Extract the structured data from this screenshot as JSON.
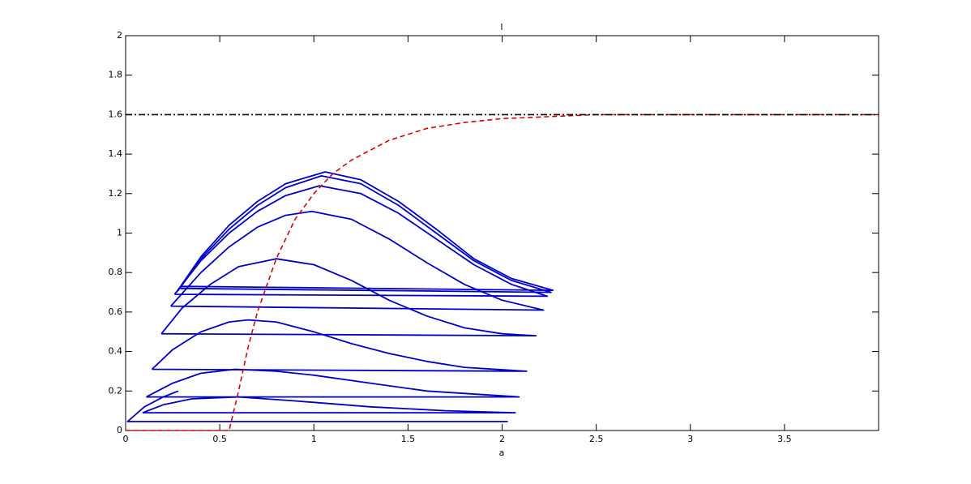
{
  "chart_data": {
    "type": "line",
    "title": "l",
    "x_label": "a",
    "xlim": [
      0,
      4
    ],
    "ylim": [
      0,
      2
    ],
    "xticks": [
      0,
      0.5,
      1,
      1.5,
      2,
      2.5,
      3,
      3.5
    ],
    "yticks": [
      0,
      0.2,
      0.4,
      0.6,
      0.8,
      1,
      1.2,
      1.4,
      1.6,
      1.8,
      2
    ],
    "series": [
      {
        "color": "#0000cc",
        "style": "solid",
        "x": [
          0.27,
          0.4,
          0.55,
          0.7,
          0.85,
          1.06,
          1.25,
          1.45,
          1.65,
          1.85,
          2.05,
          2.27,
          0.29
        ],
        "values": [
          0.7,
          0.88,
          1.04,
          1.16,
          1.25,
          1.31,
          1.27,
          1.16,
          1.02,
          0.87,
          0.77,
          0.71,
          0.73
        ]
      },
      {
        "color": "#0000cc",
        "style": "solid",
        "x": [
          0.28,
          0.4,
          0.55,
          0.7,
          0.85,
          1.04,
          1.25,
          1.45,
          1.65,
          1.85,
          2.05,
          2.26,
          0.28
        ],
        "values": [
          0.71,
          0.87,
          1.02,
          1.14,
          1.23,
          1.29,
          1.25,
          1.14,
          1.0,
          0.86,
          0.76,
          0.7,
          0.72
        ]
      },
      {
        "color": "#0000cc",
        "style": "solid",
        "x": [
          0.26,
          0.4,
          0.55,
          0.7,
          0.85,
          1.03,
          1.25,
          1.45,
          1.65,
          1.85,
          2.05,
          2.24,
          0.26
        ],
        "values": [
          0.69,
          0.86,
          1.0,
          1.11,
          1.19,
          1.24,
          1.2,
          1.1,
          0.97,
          0.84,
          0.74,
          0.68,
          0.69
        ]
      },
      {
        "color": "#0000cc",
        "style": "solid",
        "x": [
          0.24,
          0.4,
          0.55,
          0.7,
          0.85,
          0.99,
          1.2,
          1.4,
          1.6,
          1.8,
          2.0,
          2.22,
          0.24
        ],
        "values": [
          0.63,
          0.8,
          0.93,
          1.03,
          1.09,
          1.11,
          1.07,
          0.97,
          0.85,
          0.74,
          0.66,
          0.61,
          0.63
        ]
      },
      {
        "color": "#0000cc",
        "style": "solid",
        "x": [
          0.19,
          0.3,
          0.45,
          0.6,
          0.8,
          1.0,
          1.2,
          1.4,
          1.6,
          1.8,
          2.0,
          2.18,
          0.19
        ],
        "values": [
          0.49,
          0.62,
          0.74,
          0.83,
          0.87,
          0.84,
          0.76,
          0.66,
          0.58,
          0.52,
          0.49,
          0.48,
          0.49
        ]
      },
      {
        "color": "#0000cc",
        "style": "solid",
        "x": [
          0.14,
          0.25,
          0.4,
          0.55,
          0.65,
          0.8,
          1.0,
          1.2,
          1.4,
          1.6,
          1.8,
          2.13,
          0.14
        ],
        "values": [
          0.31,
          0.41,
          0.5,
          0.55,
          0.56,
          0.55,
          0.5,
          0.44,
          0.39,
          0.35,
          0.32,
          0.3,
          0.31
        ]
      },
      {
        "color": "#0000cc",
        "style": "solid",
        "x": [
          0.11,
          0.25,
          0.4,
          0.58,
          0.8,
          1.0,
          1.3,
          1.6,
          2.09,
          0.11
        ],
        "values": [
          0.17,
          0.24,
          0.29,
          0.31,
          0.3,
          0.28,
          0.24,
          0.2,
          0.17,
          0.17
        ]
      },
      {
        "color": "#0000cc",
        "style": "solid",
        "x": [
          0.09,
          0.2,
          0.35,
          0.6,
          0.9,
          1.3,
          1.7,
          2.07,
          0.09
        ],
        "values": [
          0.09,
          0.13,
          0.16,
          0.17,
          0.15,
          0.12,
          0.1,
          0.09,
          0.09
        ]
      },
      {
        "color": "#0000cc",
        "style": "solid",
        "x": [
          2.03,
          0.01,
          0.1,
          0.2,
          0.28
        ],
        "values": [
          0.045,
          0.045,
          0.12,
          0.17,
          0.2
        ]
      },
      {
        "color": "#dd0000",
        "style": "dashed",
        "x": [
          0,
          0.55,
          0.6,
          0.65,
          0.7,
          0.8,
          0.9,
          1.0,
          1.1,
          1.2,
          1.4,
          1.6,
          1.8,
          2.0,
          2.5,
          3.0,
          4.0
        ],
        "values": [
          0,
          0,
          0.2,
          0.42,
          0.6,
          0.87,
          1.07,
          1.2,
          1.3,
          1.37,
          1.47,
          1.53,
          1.56,
          1.58,
          1.6,
          1.6,
          1.6
        ]
      },
      {
        "color": "#000000",
        "style": "dashdot",
        "x": [
          0,
          4
        ],
        "values": [
          1.6,
          1.6
        ]
      }
    ]
  }
}
